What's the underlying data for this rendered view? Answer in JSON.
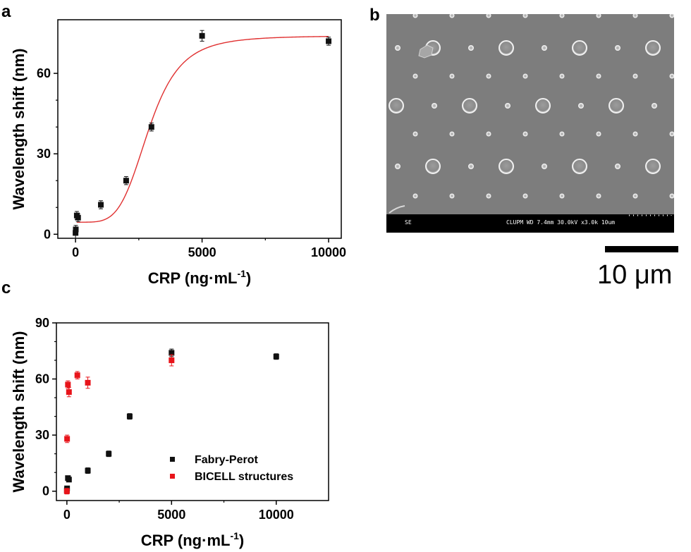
{
  "panels": {
    "a": {
      "letter": "a"
    },
    "b": {
      "letter": "b"
    },
    "c": {
      "letter": "c"
    }
  },
  "sem_image": {
    "info_left": "SE",
    "info_right": "CLUPM  WD 7.4mm 30.0kV x3.0k  10um",
    "scale_bar_label": "10 μm"
  },
  "chart_data": [
    {
      "panel": "a",
      "type": "scatter",
      "xlabel_main": "CRP (ng·mL",
      "xlabel_sup": "-1",
      "xlabel_end": ")",
      "ylabel": "Wavelength shift (nm)",
      "xlim": [
        -700,
        10500
      ],
      "ylim": [
        -1.5,
        80
      ],
      "xticks": [
        0,
        5000,
        10000
      ],
      "yticks": [
        0,
        30,
        60
      ],
      "series": [
        {
          "color": "#111111",
          "marker": "square",
          "points": [
            {
              "x": 0,
              "y": 0.5,
              "err": 2
            },
            {
              "x": 10,
              "y": 1.8,
              "err": 1.5
            },
            {
              "x": 50,
              "y": 7,
              "err": 1.5
            },
            {
              "x": 100,
              "y": 6.2,
              "err": 1.5
            },
            {
              "x": 1000,
              "y": 11,
              "err": 1.5
            },
            {
              "x": 2000,
              "y": 20,
              "err": 1.5
            },
            {
              "x": 3000,
              "y": 40,
              "err": 1.5
            },
            {
              "x": 5000,
              "y": 74,
              "err": 2
            },
            {
              "x": 10000,
              "y": 72,
              "err": 1.5
            }
          ]
        }
      ],
      "fit": {
        "color": "#e03030",
        "model": "logistic",
        "a1": 4.5,
        "a2": 74,
        "x0": 2900,
        "p": 4.6,
        "x_from": 50,
        "x_to": 10000
      }
    },
    {
      "panel": "c",
      "type": "scatter",
      "xlabel_main": "CRP (ng·mL",
      "xlabel_sup": "-1",
      "xlabel_end": ")",
      "ylabel": "Wavelength shift (nm)",
      "xlim": [
        -500,
        12500
      ],
      "ylim": [
        -5,
        90
      ],
      "xticks": [
        0,
        5000,
        10000
      ],
      "yticks": [
        0,
        30,
        60,
        90
      ],
      "legend_position": "bottom-right",
      "series": [
        {
          "name": "Fabry-Perot",
          "color": "#111111",
          "marker": "square",
          "points": [
            {
              "x": 0,
              "y": 0.5,
              "err": 1.5
            },
            {
              "x": 10,
              "y": 1.5,
              "err": 1
            },
            {
              "x": 50,
              "y": 7,
              "err": 1
            },
            {
              "x": 100,
              "y": 6.2,
              "err": 1
            },
            {
              "x": 1000,
              "y": 11,
              "err": 1.5
            },
            {
              "x": 2000,
              "y": 20,
              "err": 1.5
            },
            {
              "x": 3000,
              "y": 40,
              "err": 1.5
            },
            {
              "x": 5000,
              "y": 74,
              "err": 2
            },
            {
              "x": 10000,
              "y": 72,
              "err": 1.5
            }
          ]
        },
        {
          "name": "BICELL structures",
          "color": "#e8141a",
          "marker": "square",
          "points": [
            {
              "x": 0,
              "y": 0,
              "err": 1.5
            },
            {
              "x": 10,
              "y": 28,
              "err": 2
            },
            {
              "x": 50,
              "y": 57,
              "err": 2
            },
            {
              "x": 100,
              "y": 53,
              "err": 2.5
            },
            {
              "x": 500,
              "y": 62,
              "err": 2
            },
            {
              "x": 1000,
              "y": 58,
              "err": 3
            },
            {
              "x": 5000,
              "y": 70,
              "err": 3
            }
          ]
        }
      ]
    }
  ]
}
